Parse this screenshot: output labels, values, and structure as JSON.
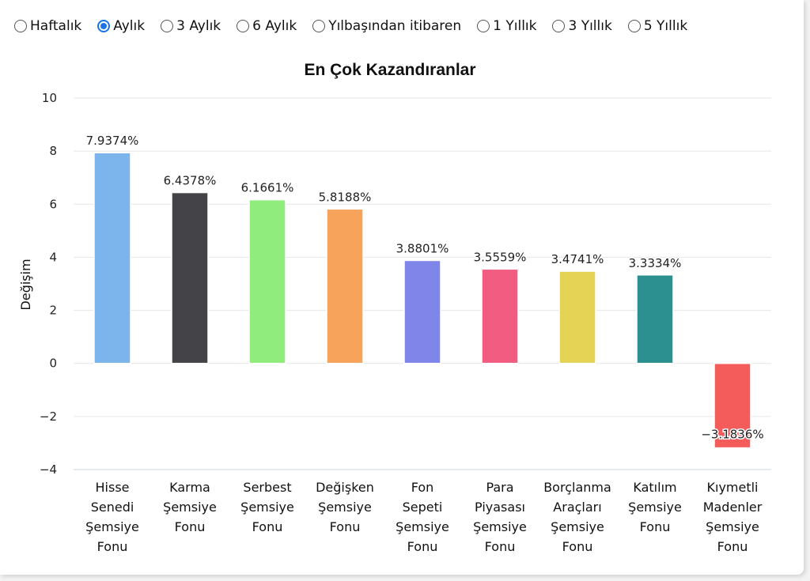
{
  "period_options": [
    {
      "label": "Haftalık",
      "checked": false
    },
    {
      "label": "Aylık",
      "checked": true
    },
    {
      "label": "3 Aylık",
      "checked": false
    },
    {
      "label": "6 Aylık",
      "checked": false
    },
    {
      "label": "Yılbaşından itibaren",
      "checked": false
    },
    {
      "label": "1 Yıllık",
      "checked": false
    },
    {
      "label": "3 Yıllık",
      "checked": false
    },
    {
      "label": "5 Yıllık",
      "checked": false
    }
  ],
  "chart_data": {
    "type": "bar",
    "title": "En Çok Kazandıranlar",
    "xlabel": "",
    "ylabel": "Değişim",
    "ylim": [
      -4,
      10
    ],
    "yticks": [
      "−4",
      "−2",
      "0",
      "2",
      "4",
      "6",
      "8",
      "10"
    ],
    "ytick_values": [
      -4,
      -2,
      0,
      2,
      4,
      6,
      8,
      10
    ],
    "grid": true,
    "categories": [
      [
        "Hisse",
        "Senedi",
        "Şemsiye",
        "Fonu"
      ],
      [
        "Karma",
        "Şemsiye",
        "Fonu"
      ],
      [
        "Serbest",
        "Şemsiye",
        "Fonu"
      ],
      [
        "Değişken",
        "Şemsiye",
        "Fonu"
      ],
      [
        "Fon",
        "Sepeti",
        "Şemsiye",
        "Fonu"
      ],
      [
        "Para",
        "Piyasası",
        "Şemsiye",
        "Fonu"
      ],
      [
        "Borçlanma",
        "Araçları",
        "Şemsiye",
        "Fonu"
      ],
      [
        "Katılım",
        "Şemsiye",
        "Fonu"
      ],
      [
        "Kıymetli",
        "Madenler",
        "Şemsiye",
        "Fonu"
      ]
    ],
    "values": [
      7.9374,
      6.4378,
      6.1661,
      5.8188,
      3.8801,
      3.5559,
      3.4741,
      3.3334,
      -3.1836
    ],
    "data_labels": [
      "7.9374%",
      "6.4378%",
      "6.1661%",
      "5.8188%",
      "3.8801%",
      "3.5559%",
      "3.4741%",
      "3.3334%",
      "−3.1836%"
    ],
    "colors": [
      "#7cb5ec",
      "#434348",
      "#90ed7d",
      "#f7a35c",
      "#8085e9",
      "#f15c80",
      "#e4d354",
      "#2b908f",
      "#f45b5b"
    ]
  }
}
